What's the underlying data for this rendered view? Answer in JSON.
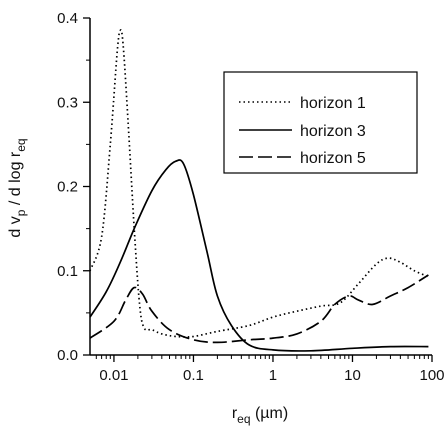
{
  "chart_data": {
    "type": "line",
    "xlabel": "r",
    "xlabel_sub": "eq",
    "xlabel_unit": " (µm)",
    "ylabel_parts": [
      "d v",
      "p",
      " / d log r",
      "eq"
    ],
    "x_scale": "log",
    "xlim": [
      0.005,
      100
    ],
    "ylim": [
      0,
      0.4
    ],
    "x_ticks": [
      0.01,
      0.1,
      1,
      10,
      100
    ],
    "x_tick_labels": [
      "0.01",
      "0.1",
      "1",
      "10",
      "100"
    ],
    "y_ticks": [
      0.0,
      0.1,
      0.2,
      0.3,
      0.4
    ],
    "y_tick_labels": [
      "0.0",
      "0.1",
      "0.2",
      "0.3",
      "0.4"
    ],
    "grid": false,
    "legend_position": "top-right",
    "series": [
      {
        "name": "horizon 1",
        "style": "dotted",
        "points": [
          [
            0.005,
            0.1
          ],
          [
            0.007,
            0.14
          ],
          [
            0.009,
            0.25
          ],
          [
            0.011,
            0.36
          ],
          [
            0.012,
            0.385
          ],
          [
            0.013,
            0.37
          ],
          [
            0.015,
            0.28
          ],
          [
            0.018,
            0.15
          ],
          [
            0.021,
            0.06
          ],
          [
            0.024,
            0.032
          ],
          [
            0.03,
            0.03
          ],
          [
            0.04,
            0.025
          ],
          [
            0.06,
            0.022
          ],
          [
            0.1,
            0.022
          ],
          [
            0.2,
            0.028
          ],
          [
            0.5,
            0.035
          ],
          [
            1,
            0.045
          ],
          [
            2,
            0.052
          ],
          [
            4,
            0.058
          ],
          [
            7,
            0.062
          ],
          [
            12,
            0.085
          ],
          [
            20,
            0.108
          ],
          [
            28,
            0.115
          ],
          [
            40,
            0.11
          ],
          [
            60,
            0.1
          ],
          [
            90,
            0.093
          ]
        ]
      },
      {
        "name": "horizon 3",
        "style": "solid",
        "points": [
          [
            0.005,
            0.045
          ],
          [
            0.008,
            0.075
          ],
          [
            0.012,
            0.11
          ],
          [
            0.018,
            0.15
          ],
          [
            0.03,
            0.195
          ],
          [
            0.045,
            0.22
          ],
          [
            0.06,
            0.23
          ],
          [
            0.075,
            0.227
          ],
          [
            0.1,
            0.19
          ],
          [
            0.15,
            0.12
          ],
          [
            0.2,
            0.07
          ],
          [
            0.3,
            0.035
          ],
          [
            0.5,
            0.012
          ],
          [
            1,
            0.006
          ],
          [
            3,
            0.005
          ],
          [
            10,
            0.008
          ],
          [
            30,
            0.01
          ],
          [
            90,
            0.01
          ]
        ]
      },
      {
        "name": "horizon 5",
        "style": "dashed",
        "points": [
          [
            0.005,
            0.02
          ],
          [
            0.01,
            0.04
          ],
          [
            0.014,
            0.065
          ],
          [
            0.018,
            0.08
          ],
          [
            0.023,
            0.072
          ],
          [
            0.03,
            0.052
          ],
          [
            0.05,
            0.03
          ],
          [
            0.1,
            0.018
          ],
          [
            0.2,
            0.015
          ],
          [
            0.5,
            0.018
          ],
          [
            1,
            0.02
          ],
          [
            2,
            0.025
          ],
          [
            4,
            0.04
          ],
          [
            6,
            0.06
          ],
          [
            9,
            0.07
          ],
          [
            12,
            0.065
          ],
          [
            18,
            0.06
          ],
          [
            30,
            0.07
          ],
          [
            50,
            0.08
          ],
          [
            90,
            0.095
          ]
        ]
      }
    ]
  }
}
